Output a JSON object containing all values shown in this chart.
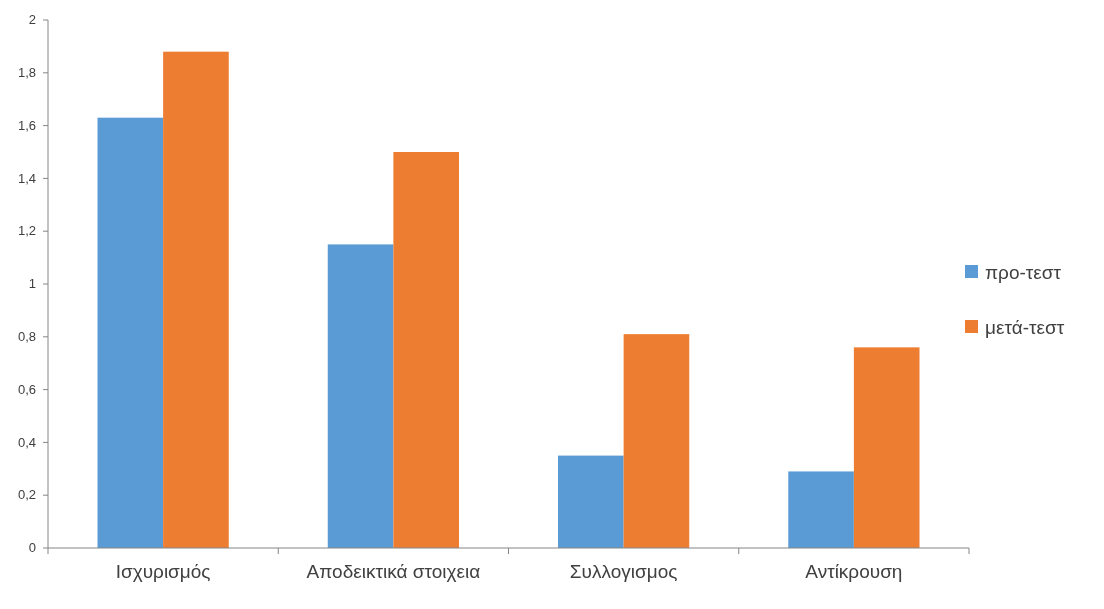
{
  "chart_data": {
    "type": "bar",
    "categories": [
      "Ισχυρισμός",
      "Αποδεικτικά στοιχεια",
      "Συλλογισμος",
      "Αντίκρουση"
    ],
    "series": [
      {
        "name": "προ-τεστ",
        "color": "#5b9bd5",
        "values": [
          1.63,
          1.15,
          0.35,
          0.29
        ]
      },
      {
        "name": "μετά-τεστ",
        "color": "#ed7d31",
        "values": [
          1.88,
          1.5,
          0.81,
          0.76
        ]
      }
    ],
    "ylim": [
      0,
      2
    ],
    "yticks": [
      0,
      {
        "value": 0.2,
        "label": "0,2"
      },
      {
        "value": 0.4,
        "label": "0,4"
      },
      {
        "value": 0.6,
        "label": "0,6"
      },
      {
        "value": 0.8,
        "label": "0,8"
      },
      1,
      {
        "value": 1.2,
        "label": "1,2"
      },
      {
        "value": 1.4,
        "label": "1,4"
      },
      {
        "value": 1.6,
        "label": "1,6"
      },
      {
        "value": 1.8,
        "label": "1,8"
      },
      2
    ],
    "grid": false,
    "legend": "right"
  }
}
